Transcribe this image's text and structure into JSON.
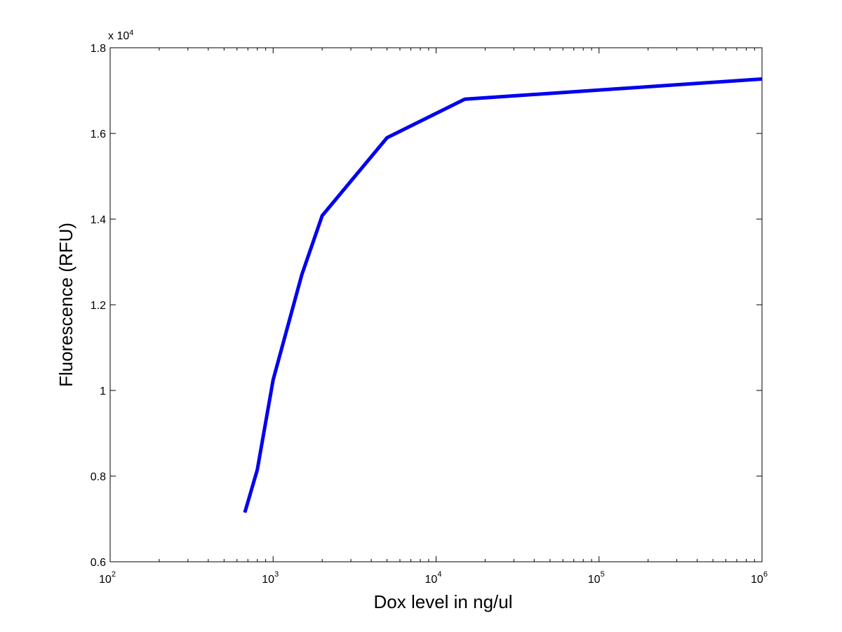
{
  "chart_data": {
    "type": "line",
    "title": "",
    "xlabel": "Dox level in ng/ul",
    "ylabel": "Fluorescence (RFU)",
    "x_scale": "log",
    "xlim": [
      100,
      1000000
    ],
    "ylim": [
      6000,
      18000
    ],
    "x_ticks": [
      100,
      1000,
      10000,
      100000,
      1000000
    ],
    "x_tick_labels": [
      {
        "base": "10",
        "exp": "2"
      },
      {
        "base": "10",
        "exp": "3"
      },
      {
        "base": "10",
        "exp": "4"
      },
      {
        "base": "10",
        "exp": "5"
      },
      {
        "base": "10",
        "exp": "6"
      }
    ],
    "y_ticks": [
      6000,
      8000,
      10000,
      12000,
      14000,
      16000,
      18000
    ],
    "y_tick_labels": [
      "0.6",
      "0.8",
      "1",
      "1.2",
      "1.4",
      "1.6",
      "1.8"
    ],
    "y_multiplier": {
      "prefix": "x 10",
      "exp": "4"
    },
    "grid": false,
    "series": [
      {
        "color": "#0000ee",
        "x": [
          670,
          800,
          1000,
          1500,
          2000,
          5000,
          15000,
          1000000
        ],
        "y": [
          7150,
          8150,
          10250,
          12700,
          14080,
          15900,
          16800,
          17270
        ]
      }
    ]
  }
}
